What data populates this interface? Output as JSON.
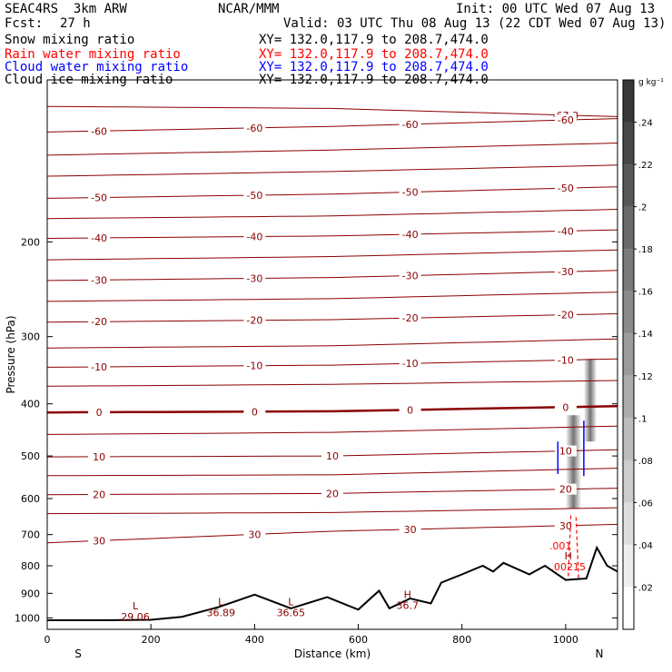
{
  "header": {
    "title_left": "SEAC4RS  3km ARW",
    "institution": "NCAR/MMM",
    "init": "Init: 00 UTC Wed 07 Aug 13",
    "fcst_label": "Fcst:",
    "fcst_value": "27 h",
    "valid": "Valid: 03 UTC Thu 08 Aug 13 (22 CDT Wed 07 Aug 13)"
  },
  "fields": [
    {
      "name": "Snow mixing ratio",
      "xy": "XY= 132.0,117.9 to 208.7,474.0",
      "color": "#000000"
    },
    {
      "name": "Rain water mixing ratio",
      "xy": "XY= 132.0,117.9 to 208.7,474.0",
      "color": "#ff0000"
    },
    {
      "name": "Cloud water mixing ratio",
      "xy": "XY= 132.0,117.9 to 208.7,474.0",
      "color": "#0000ff"
    },
    {
      "name": "Cloud ice mixing ratio",
      "xy": "XY= 132.0,117.9 to 208.7,474.0",
      "color": "#000000"
    }
  ],
  "colorbar": {
    "unit": "g kg⁻¹",
    "ticks": [
      ".02",
      ".04",
      ".06",
      ".08",
      ".1",
      ".12",
      ".14",
      ".16",
      ".18",
      ".2",
      ".22",
      ".24"
    ]
  },
  "chart_data": {
    "type": "line",
    "xlabel": "Distance (km)",
    "ylabel": "Pressure (hPa)",
    "xlim": [
      0,
      1100
    ],
    "ylim": [
      1050,
      100
    ],
    "y_log": true,
    "x_ticks": [
      0,
      200,
      400,
      600,
      800,
      1000
    ],
    "y_ticks": [
      200,
      300,
      400,
      500,
      600,
      700,
      800,
      900,
      1000
    ],
    "x_end_labels": {
      "left": "S",
      "right": "N"
    },
    "temperature_color": "#8b0000",
    "isotherms": [
      {
        "p": [
          112,
          113,
          117
        ],
        "label": "-67.3",
        "shown": "partial"
      },
      {
        "p": [
          125,
          122,
          118
        ],
        "labels": [
          "-60",
          "-60",
          "-60",
          "-60"
        ]
      },
      {
        "p": [
          138,
          135,
          131
        ]
      },
      {
        "p": [
          151,
          148,
          144
        ]
      },
      {
        "p": [
          166,
          163,
          158
        ],
        "labels": [
          "-50",
          "-50",
          "-50",
          "-50"
        ]
      },
      {
        "p": [
          181,
          179,
          174
        ]
      },
      {
        "p": [
          197,
          195,
          190
        ],
        "labels": [
          "-40",
          "-40",
          "-40",
          "-40"
        ]
      },
      {
        "p": [
          216,
          213,
          207
        ]
      },
      {
        "p": [
          236,
          233,
          226
        ],
        "labels": [
          "-30",
          "-30",
          "-30",
          "-30"
        ]
      },
      {
        "p": [
          258,
          255,
          248
        ]
      },
      {
        "p": [
          282,
          279,
          272
        ],
        "labels": [
          "-20",
          "-20",
          "-20",
          "-20"
        ]
      },
      {
        "p": [
          315,
          312,
          303
        ]
      },
      {
        "p": [
          342,
          339,
          330
        ],
        "labels": [
          "-10",
          "-10",
          "-10",
          "-10"
        ]
      },
      {
        "p": [
          371,
          368,
          362
        ]
      },
      {
        "p": [
          415,
          413,
          404
        ],
        "labels": [
          "0",
          "0",
          "0",
          "0"
        ],
        "bold": true
      },
      {
        "p": [
          456,
          452,
          440
        ]
      },
      {
        "p": [
          502,
          500,
          487
        ],
        "labels": [
          "10",
          "10",
          "10"
        ]
      },
      {
        "p": [
          544,
          542,
          527
        ]
      },
      {
        "p": [
          590,
          587,
          574
        ],
        "labels": [
          "20",
          "20",
          "20"
        ]
      },
      {
        "p": [
          640,
          637,
          624
        ]
      },
      {
        "p": [
          725,
          690,
          670
        ],
        "labels": [
          "30",
          "30",
          "30",
          "30"
        ]
      }
    ],
    "extrema_labels": [
      {
        "x": 170,
        "p": 1003,
        "text": "L",
        "value": "29.06"
      },
      {
        "x": 335,
        "p": 985,
        "text": "L",
        "value": "36.89"
      },
      {
        "x": 470,
        "p": 985,
        "text": "L",
        "value": "36.65"
      },
      {
        "x": 695,
        "p": 955,
        "text": "H",
        "value": "36.7"
      },
      {
        "x": 1005,
        "p": 810,
        "text": "H",
        "value": ".00215"
      },
      {
        "x": 990,
        "p": 740,
        "text": "",
        "value": ".001"
      }
    ],
    "terrain_km": [
      0,
      100,
      200,
      260,
      330,
      400,
      470,
      540,
      600,
      640,
      660,
      700,
      740,
      760,
      800,
      840,
      860,
      880,
      930,
      960,
      1000,
      1040,
      1060,
      1080,
      1100
    ],
    "terrain_p": [
      1010,
      1010,
      1008,
      995,
      955,
      905,
      960,
      915,
      965,
      890,
      960,
      920,
      940,
      860,
      830,
      800,
      820,
      790,
      830,
      800,
      850,
      845,
      740,
      800,
      820
    ],
    "snow_max": 0.2
  }
}
